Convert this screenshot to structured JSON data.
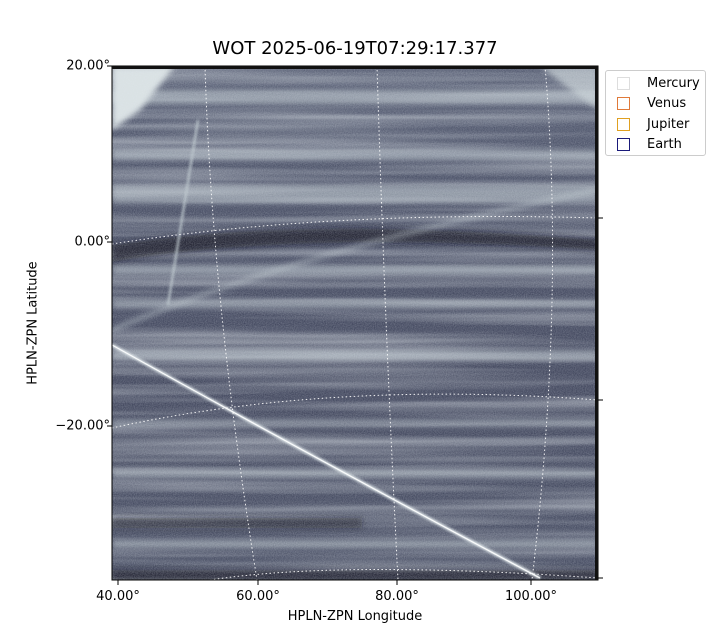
{
  "title": "WOT 2025-06-19T07:29:17.377",
  "axes": {
    "xlabel": "HPLN-ZPN Longitude",
    "ylabel": "HPLN-ZPN Latitude",
    "xticks": [
      "40.00°",
      "60.00°",
      "80.00°",
      "100.00°"
    ],
    "yticks": [
      "20.00°",
      "0.00°",
      "−20.00°"
    ]
  },
  "legend": {
    "items": [
      {
        "label": "Mercury",
        "color": "#dddddd"
      },
      {
        "label": "Venus",
        "color": "#e07a3a"
      },
      {
        "label": "Jupiter",
        "color": "#e0a020"
      },
      {
        "label": "Earth",
        "color": "#1a1a7a"
      }
    ]
  },
  "colors": {
    "background_dark": "#2b3147",
    "band_light": "#c9d3d6",
    "grid": "#ffffff"
  }
}
